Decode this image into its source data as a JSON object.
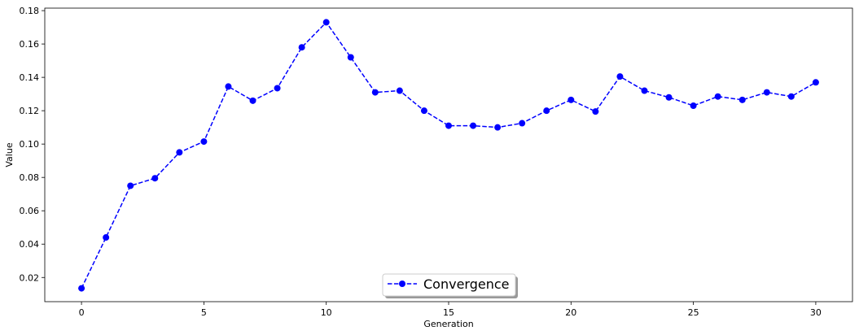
{
  "chart_data": {
    "type": "line",
    "xlabel": "Generation",
    "ylabel": "Value",
    "xlim": [
      -1.5,
      31.5
    ],
    "ylim": [
      0.0055,
      0.1815
    ],
    "xticks": [
      0,
      5,
      10,
      15,
      20,
      25,
      30
    ],
    "yticks": [
      0.02,
      0.04,
      0.06,
      0.08,
      0.1,
      0.12,
      0.14,
      0.16,
      0.18
    ],
    "ytick_labels": [
      "0.02",
      "0.04",
      "0.06",
      "0.08",
      "0.10",
      "0.12",
      "0.14",
      "0.16",
      "0.18"
    ],
    "grid": false,
    "legend_position": "lower center",
    "series": [
      {
        "name": "Convergence",
        "color": "#0000ff",
        "line_style": "dashed",
        "marker": "circle",
        "x": [
          0,
          1,
          2,
          3,
          4,
          5,
          6,
          7,
          8,
          9,
          10,
          11,
          12,
          13,
          14,
          15,
          16,
          17,
          18,
          19,
          20,
          21,
          22,
          23,
          24,
          25,
          26,
          27,
          28,
          29,
          30
        ],
        "y": [
          0.0135,
          0.044,
          0.075,
          0.0795,
          0.095,
          0.1015,
          0.1345,
          0.126,
          0.1335,
          0.158,
          0.173,
          0.152,
          0.131,
          0.132,
          0.12,
          0.111,
          0.111,
          0.11,
          0.1125,
          0.12,
          0.1265,
          0.1195,
          0.1405,
          0.132,
          0.128,
          0.123,
          0.1285,
          0.1265,
          0.131,
          0.1285,
          0.137
        ]
      }
    ]
  }
}
